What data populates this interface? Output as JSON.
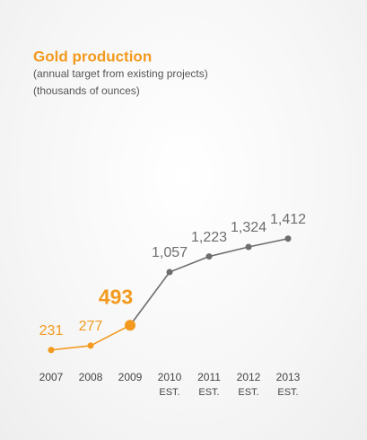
{
  "chart_data": {
    "type": "line",
    "title": "Gold production",
    "subtitles": [
      "(annual target from existing projects)",
      "(thousands of ounces)"
    ],
    "categories": [
      "2007",
      "2008",
      "2009",
      "2010",
      "2011",
      "2012",
      "2013"
    ],
    "category_notes": [
      null,
      null,
      null,
      "EST.",
      "EST.",
      "EST.",
      "EST."
    ],
    "series": [
      {
        "color": "#f39a1e",
        "values": [
          231,
          277,
          493,
          null,
          null,
          null,
          null
        ],
        "value_labels": [
          "231",
          "277",
          "493",
          null,
          null,
          null,
          null
        ]
      },
      {
        "color": "#6d6d6d",
        "values": [
          null,
          null,
          493,
          1057,
          1223,
          1324,
          1412
        ],
        "value_labels": [
          null,
          null,
          null,
          "1,057",
          "1,223",
          "1,324",
          "1,412"
        ]
      }
    ],
    "highlight": 2,
    "ylim": [
      0,
      2000
    ]
  }
}
